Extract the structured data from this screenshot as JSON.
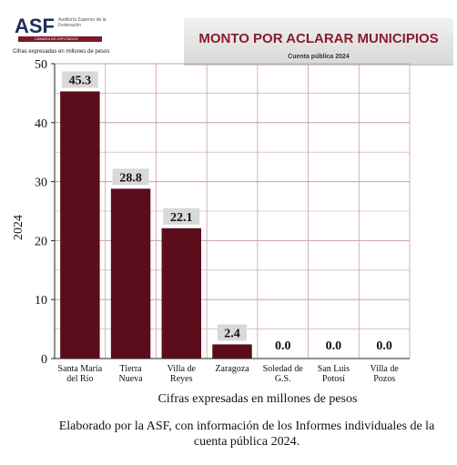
{
  "header": {
    "logo_text": "ASF",
    "logo_subtitle": "Auditoría Superior de la Federación",
    "logo_bar_text": "CÁMARA DE DIPUTADOS",
    "note": "Cifras expresadas en millones de pesos",
    "banner_title": "MONTO POR ACLARAR MUNICIPIOS",
    "banner_subtitle": "Cuenta pública 2024"
  },
  "footer": {
    "line1": "Elaborado por la ASF, con información de los Informes individuales de la",
    "line2": "cuenta pública 2024."
  },
  "colors": {
    "bar": "#5c0d1c",
    "grid": "#c9a0a8",
    "label_bg": "#d9d9d9",
    "banner_title": "#8a1c2d"
  },
  "chart_data": {
    "type": "bar",
    "categories": [
      [
        "Santa María",
        "del Río"
      ],
      [
        "Tierra",
        "Nueva"
      ],
      [
        "Villa de",
        "Reyes"
      ],
      [
        "Zaragoza"
      ],
      [
        "Soledad de",
        "G.S."
      ],
      [
        "San Luis",
        "Potosí"
      ],
      [
        "Villa de",
        "Pozos"
      ]
    ],
    "values": [
      45.3,
      28.8,
      22.1,
      2.4,
      0.0,
      0.0,
      0.0
    ],
    "value_labels": [
      "45.3",
      "28.8",
      "22.1",
      "2.4",
      "0.0",
      "0.0",
      "0.0"
    ],
    "ylabel": "2024",
    "xlabel": "Cifras expresadas en millones de pesos",
    "ylim": [
      0,
      50
    ],
    "yticks": [
      "0",
      "10",
      "20",
      "30",
      "40",
      "50"
    ],
    "grid": true
  }
}
